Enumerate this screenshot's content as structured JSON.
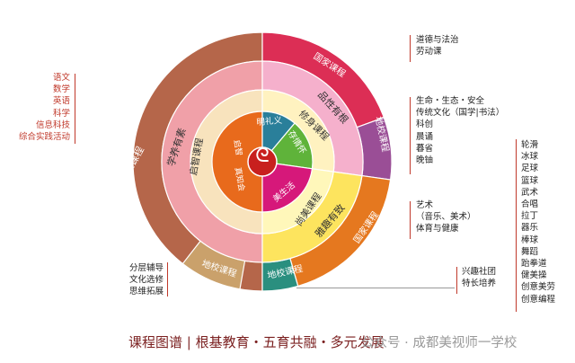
{
  "left_list": {
    "items": [
      "语文",
      "数学",
      "英语",
      "科学",
      "信息科技",
      "综合实践活动"
    ]
  },
  "left_bottom_list": {
    "items": [
      "分层辅导",
      "文化选修",
      "思维拓展"
    ]
  },
  "right_top_list": {
    "items": [
      "道德与法治",
      "劳动课"
    ]
  },
  "right_mid_list": {
    "items": [
      "生命・生态・安全",
      "传统文化（国学|书法）",
      "科创",
      "晨诵",
      "暮省",
      "晚铀"
    ]
  },
  "right_arts_list": {
    "items": [
      "艺术",
      "（音乐、美术）",
      "体育与健康"
    ]
  },
  "right_clubs_list": {
    "items": [
      "兴趣社团",
      "特长培养"
    ]
  },
  "right_far_list": {
    "items": [
      "轮滑",
      "冰球",
      "足球",
      "篮球",
      "武术",
      "合唱",
      "拉丁",
      "器乐",
      "棒球",
      "舞蹈",
      "跆拳道",
      "健美操",
      "创意美劳",
      "创意编程"
    ]
  },
  "wheel": {
    "outer": {
      "national_left": "国家课程",
      "national_top": "国家课程",
      "national_right": "国家课程",
      "school_right": "地校课程",
      "school_bottom_left": "地校课程",
      "school_bottom_right": "地校课程"
    },
    "third": {
      "left": "学养有素",
      "top_right": "品性有根",
      "bottom_right": "雅趣有致"
    },
    "second": {
      "left": "启智课程",
      "top_right": "修身课程",
      "bottom_right": "尚美课程"
    },
    "inner": {
      "left_top": "启智",
      "left_bottom": "真知会",
      "top_a": "明礼义",
      "top_b": "存情怀",
      "bottom": "美生活"
    },
    "colors": {
      "outer_left": "#b5664a",
      "outer_top_right": "#dc2e55",
      "outer_bottom_right": "#e5781f",
      "purple": "#9a4e96",
      "teal": "#2a8f7f",
      "school_tan": "#caa16b",
      "ring3_left": "#f0a0a8",
      "ring3_top_right": "#f5b0cc",
      "ring3_bottom_right": "#fde45e",
      "ring2_left": "#f8e3bd",
      "ring2_top_right": "#fff2c0",
      "ring2_bottom_right": "#fff7ba",
      "inner_left": "#e86a1c",
      "inner_top": "#2a7f9a",
      "inner_bottom": "#d6187a",
      "inner_right_green": "#5fb33a",
      "center_red": "#c8201e"
    }
  },
  "footer": {
    "title": "课程图谱 | 根基教育・五育共融・多元发展",
    "watermark": "公众号 · 成都美视师一学校"
  }
}
